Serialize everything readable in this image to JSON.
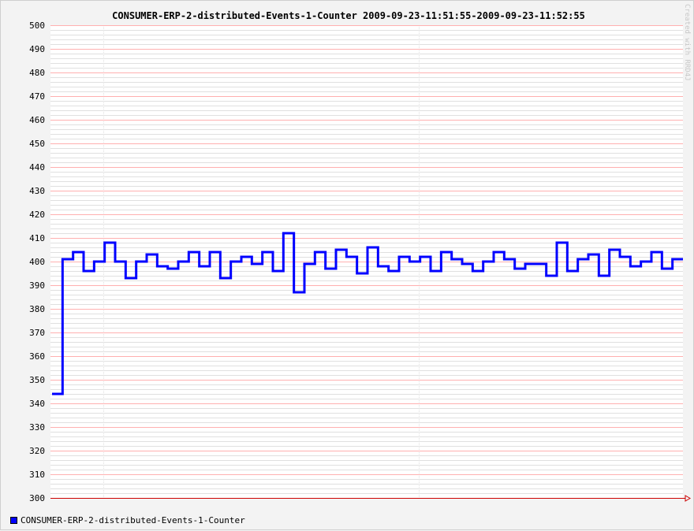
{
  "chart_data": {
    "type": "line",
    "title": "CONSUMER-ERP-2-distributed-Events-1-Counter 2009-09-23-11:51:55-2009-09-23-11:52:55",
    "xlabel": "",
    "ylabel": "",
    "ylim": [
      300,
      500
    ],
    "yticks": [
      "500",
      "490",
      "480",
      "470",
      "460",
      "450",
      "440",
      "430",
      "420",
      "410",
      "400",
      "390",
      "380",
      "370",
      "360",
      "350",
      "340",
      "330",
      "320",
      "310",
      "300"
    ],
    "grid": true,
    "legend_position": "bottom-left",
    "credit": "Created with RRD4J",
    "step": true,
    "series": [
      {
        "name": "CONSUMER-ERP-2-distributed-Events-1-Counter",
        "color": "#0000ff",
        "values": [
          344,
          401,
          404,
          396,
          400,
          408,
          400,
          393,
          400,
          403,
          398,
          397,
          400,
          404,
          398,
          404,
          393,
          400,
          402,
          399,
          404,
          396,
          412,
          387,
          399,
          404,
          397,
          405,
          402,
          395,
          406,
          398,
          396,
          402,
          400,
          402,
          396,
          404,
          401,
          399,
          396,
          400,
          404,
          401,
          397,
          399,
          399,
          394,
          408,
          396,
          401,
          403,
          394,
          405,
          402,
          398,
          400,
          404,
          397,
          401
        ]
      }
    ]
  },
  "colors": {
    "background": "#f3f3f3",
    "plot_background": "#ffffff",
    "minor_grid": "#e0e0e0",
    "major_grid": "#ffb0b0",
    "axis": "#cc0000",
    "series": "#0000ff"
  }
}
